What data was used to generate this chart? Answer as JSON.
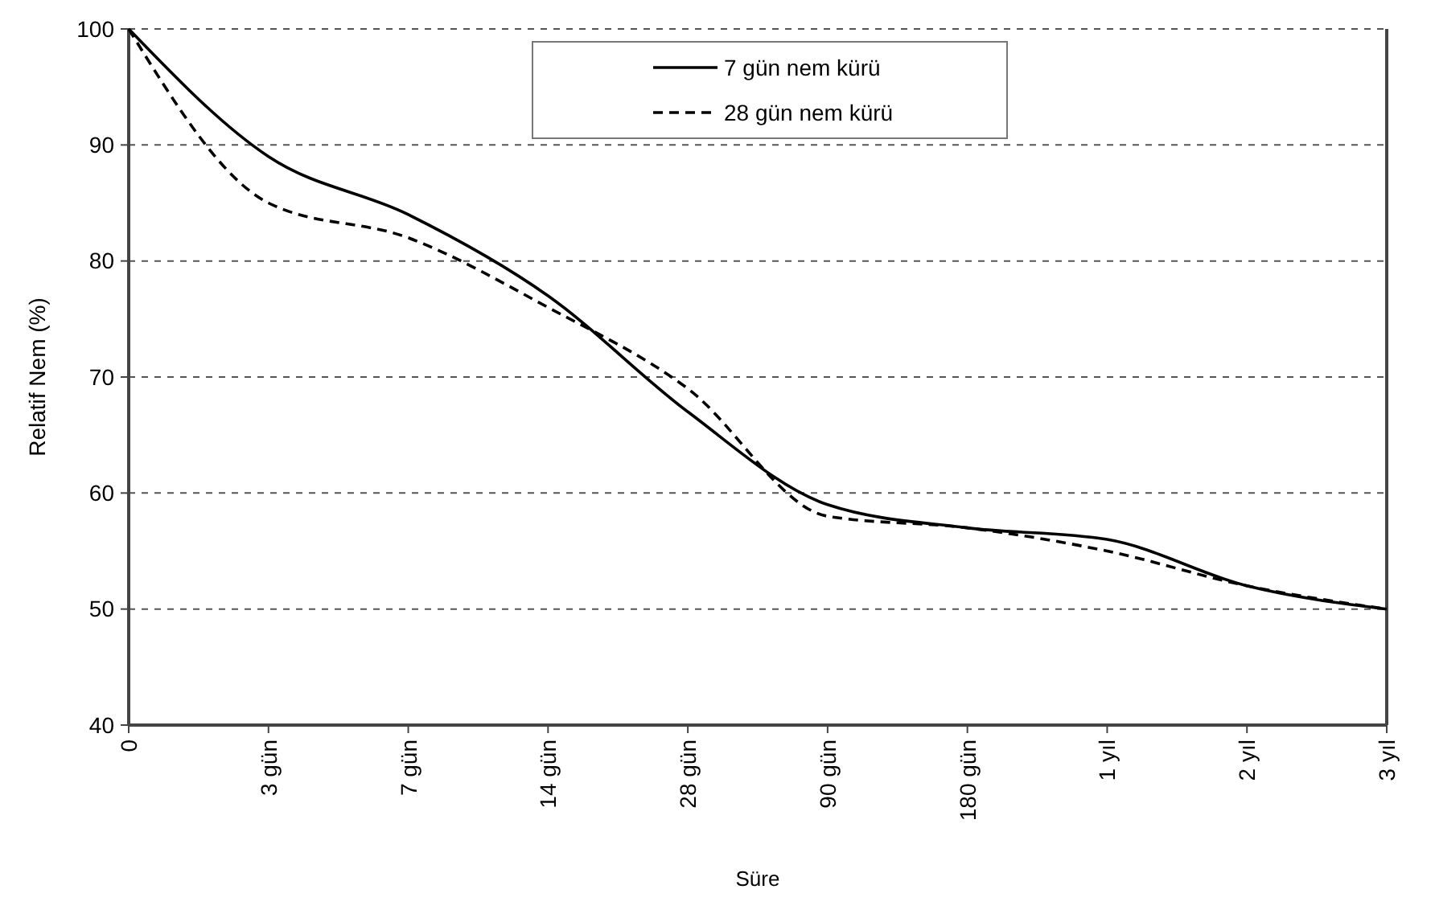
{
  "chart_data": {
    "type": "line",
    "xlabel": "Süre",
    "ylabel": "Relatif Nem (%)",
    "categories": [
      "0",
      "3 gün",
      "7 gün",
      "14 gün",
      "28 gün",
      "90 gün",
      "180 gün",
      "1 yıl",
      "2 yıl",
      "3 yıl"
    ],
    "series": [
      {
        "name": "7 gün nem kürü",
        "color": "#000000",
        "line_style": "solid",
        "values": [
          100,
          89,
          84,
          77,
          67,
          59,
          57,
          56,
          52,
          50
        ]
      },
      {
        "name": "28 gün nem kürü",
        "color": "#000000",
        "line_style": "dashed",
        "values": [
          100,
          85,
          82,
          76,
          69,
          58,
          57,
          55,
          52,
          50
        ]
      }
    ],
    "ylim": [
      40,
      100
    ],
    "yticks": [
      40,
      50,
      60,
      70,
      80,
      90,
      100
    ],
    "grid": "y",
    "legend": "top",
    "marker": "none"
  }
}
